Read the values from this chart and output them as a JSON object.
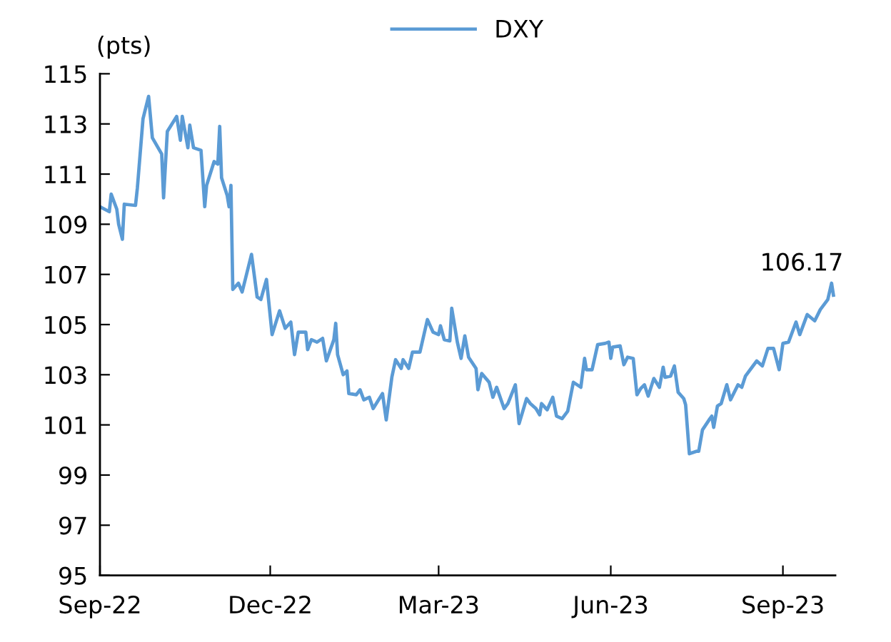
{
  "chart_data": {
    "type": "line",
    "ylabel": "(pts)",
    "legend": "top",
    "grid": false,
    "line_style": "solid",
    "x": [
      "2022-09-01",
      "2022-09-06",
      "2022-09-07",
      "2022-09-10",
      "2022-09-11",
      "2022-09-13",
      "2022-09-14",
      "2022-09-20",
      "2022-09-21",
      "2022-09-24",
      "2022-09-27",
      "2022-09-29",
      "2022-10-04",
      "2022-10-05",
      "2022-10-07",
      "2022-10-12",
      "2022-10-14",
      "2022-10-15",
      "2022-10-18",
      "2022-10-19",
      "2022-10-21",
      "2022-10-25",
      "2022-10-27",
      "2022-10-28",
      "2022-11-01",
      "2022-11-03",
      "2022-11-04",
      "2022-11-05",
      "2022-11-08",
      "2022-11-09",
      "2022-11-10",
      "2022-11-11",
      "2022-11-14",
      "2022-11-16",
      "2022-11-21",
      "2022-11-24",
      "2022-11-26",
      "2022-11-29",
      "2022-12-02",
      "2022-12-06",
      "2022-12-09",
      "2022-12-12",
      "2022-12-14",
      "2022-12-16",
      "2022-12-20",
      "2022-12-21",
      "2022-12-23",
      "2022-12-26",
      "2022-12-29",
      "2022-12-31",
      "2023-01-04",
      "2023-01-05",
      "2023-01-06",
      "2023-01-09",
      "2023-01-11",
      "2023-01-12",
      "2023-01-16",
      "2023-01-18",
      "2023-01-20",
      "2023-01-23",
      "2023-01-25",
      "2023-01-30",
      "2023-02-01",
      "2023-02-04",
      "2023-02-06",
      "2023-02-09",
      "2023-02-10",
      "2023-02-13",
      "2023-02-15",
      "2023-02-19",
      "2023-02-23",
      "2023-02-26",
      "2023-03-01",
      "2023-03-02",
      "2023-03-04",
      "2023-03-07",
      "2023-03-08",
      "2023-03-11",
      "2023-03-13",
      "2023-03-15",
      "2023-03-17",
      "2023-03-21",
      "2023-03-22",
      "2023-03-24",
      "2023-03-28",
      "2023-03-30",
      "2023-04-01",
      "2023-04-05",
      "2023-04-07",
      "2023-04-11",
      "2023-04-13",
      "2023-04-17",
      "2023-04-19",
      "2023-04-22",
      "2023-04-24",
      "2023-04-25",
      "2023-04-28",
      "2023-05-01",
      "2023-05-03",
      "2023-05-06",
      "2023-05-09",
      "2023-05-12",
      "2023-05-16",
      "2023-05-18",
      "2023-05-19",
      "2023-05-22",
      "2023-05-25",
      "2023-05-29",
      "2023-05-31",
      "2023-06-01",
      "2023-06-02",
      "2023-06-06",
      "2023-06-08",
      "2023-06-10",
      "2023-06-13",
      "2023-06-15",
      "2023-06-17",
      "2023-06-19",
      "2023-06-21",
      "2023-06-24",
      "2023-06-27",
      "2023-06-29",
      "2023-06-30",
      "2023-07-03",
      "2023-07-05",
      "2023-07-07",
      "2023-07-10",
      "2023-07-11",
      "2023-07-13",
      "2023-07-17",
      "2023-07-18",
      "2023-07-20",
      "2023-07-24",
      "2023-07-25",
      "2023-07-26",
      "2023-07-28",
      "2023-07-30",
      "2023-08-02",
      "2023-08-04",
      "2023-08-08",
      "2023-08-10",
      "2023-08-12",
      "2023-08-16",
      "2023-08-18",
      "2023-08-21",
      "2023-08-24",
      "2023-08-27",
      "2023-08-30",
      "2023-09-01",
      "2023-09-04",
      "2023-09-08",
      "2023-09-10",
      "2023-09-14",
      "2023-09-18",
      "2023-09-21",
      "2023-09-25",
      "2023-09-27",
      "2023-09-28"
    ],
    "series": [
      {
        "name": "DXY",
        "color": "#5b9bd5",
        "values": [
          109.7,
          109.5,
          110.2,
          109.6,
          109.0,
          108.4,
          109.8,
          109.75,
          110.45,
          113.2,
          114.1,
          112.45,
          111.8,
          110.05,
          112.7,
          113.3,
          112.35,
          113.3,
          112.05,
          112.95,
          112.05,
          111.95,
          109.7,
          110.55,
          111.5,
          111.4,
          112.9,
          110.85,
          110.15,
          109.7,
          110.55,
          106.4,
          106.65,
          106.3,
          107.8,
          106.1,
          106.0,
          106.8,
          104.6,
          105.55,
          104.85,
          105.1,
          103.8,
          104.7,
          104.7,
          104.0,
          104.4,
          104.3,
          104.45,
          103.55,
          104.4,
          105.05,
          103.8,
          103.0,
          103.15,
          102.25,
          102.2,
          102.4,
          102.0,
          102.1,
          101.65,
          102.25,
          101.2,
          102.9,
          103.6,
          103.25,
          103.6,
          103.25,
          103.9,
          103.9,
          105.2,
          104.7,
          104.6,
          104.95,
          104.4,
          104.35,
          105.65,
          104.3,
          103.65,
          104.55,
          103.7,
          103.25,
          102.4,
          103.05,
          102.7,
          102.1,
          102.5,
          101.65,
          101.85,
          102.6,
          101.05,
          102.05,
          101.85,
          101.65,
          101.4,
          101.85,
          101.6,
          102.1,
          101.35,
          101.25,
          101.55,
          102.7,
          102.5,
          103.65,
          103.2,
          103.2,
          104.2,
          104.25,
          104.3,
          103.65,
          104.1,
          104.15,
          103.4,
          103.7,
          103.65,
          102.2,
          102.45,
          102.6,
          102.15,
          102.85,
          102.5,
          103.3,
          102.9,
          102.95,
          103.35,
          102.3,
          102.05,
          101.8,
          99.85,
          99.95,
          99.95,
          100.8,
          101.25,
          101.35,
          100.9,
          101.75,
          101.85,
          102.6,
          102.0,
          102.6,
          102.5,
          102.95,
          103.35,
          103.55,
          103.35,
          104.05,
          104.05,
          103.2,
          104.25,
          104.3,
          105.1,
          104.6,
          105.4,
          105.15,
          105.6,
          106.0,
          106.65,
          106.17
        ]
      }
    ],
    "xlim": [
      "2022-09-01",
      "2023-09-29"
    ],
    "xticks": [
      {
        "value": "2022-09-01",
        "label": "Sep-22"
      },
      {
        "value": "2022-12-01",
        "label": "Dec-22"
      },
      {
        "value": "2023-03-01",
        "label": "Mar-23"
      },
      {
        "value": "2023-06-01",
        "label": "Jun-23"
      },
      {
        "value": "2023-09-01",
        "label": "Sep-23"
      }
    ],
    "ylim": [
      95,
      115
    ],
    "yticks": [
      95,
      97,
      99,
      101,
      103,
      105,
      107,
      109,
      111,
      113,
      115
    ],
    "annotations": [
      {
        "text": "106.17",
        "x": "2023-09-28",
        "y": 106.17
      }
    ]
  }
}
